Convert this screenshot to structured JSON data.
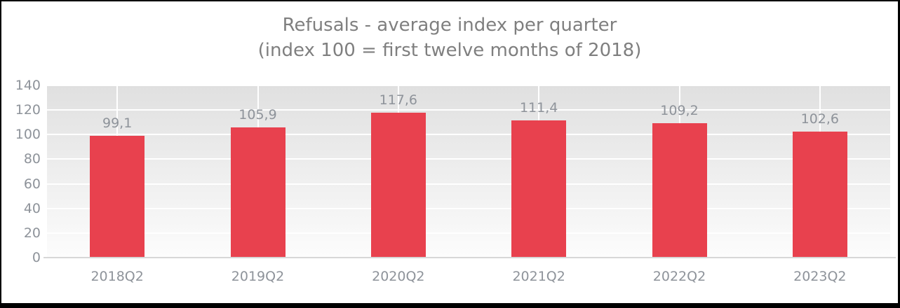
{
  "window": {
    "background": "#ffffff",
    "border_color": "#000000"
  },
  "chart_data": {
    "type": "bar",
    "title": "Refusals - average index per quarter",
    "subtitle": "(index 100 = first twelve months of 2018)",
    "categories": [
      "2018Q2",
      "2019Q2",
      "2020Q2",
      "2021Q2",
      "2022Q2",
      "2023Q2"
    ],
    "values": [
      99.1,
      105.9,
      117.6,
      111.4,
      109.2,
      102.6
    ],
    "value_labels": [
      "99,1",
      "105,9",
      "117,6",
      "111,4",
      "109,2",
      "102,6"
    ],
    "xlabel": "",
    "ylabel": "",
    "ylim": [
      0,
      140
    ],
    "yticks": [
      0,
      20,
      40,
      60,
      80,
      100,
      120,
      140
    ],
    "grid": true,
    "legend": "none",
    "bar_color": "#e8414e",
    "plot_bg_top": "#e0e0e0",
    "plot_bg_bottom": "#fcfcfc",
    "gridline_color": "#ffffff",
    "axis_line_color": "#d7d7d7",
    "title_color": "#7f7f7f",
    "label_color": "#8e939a"
  }
}
